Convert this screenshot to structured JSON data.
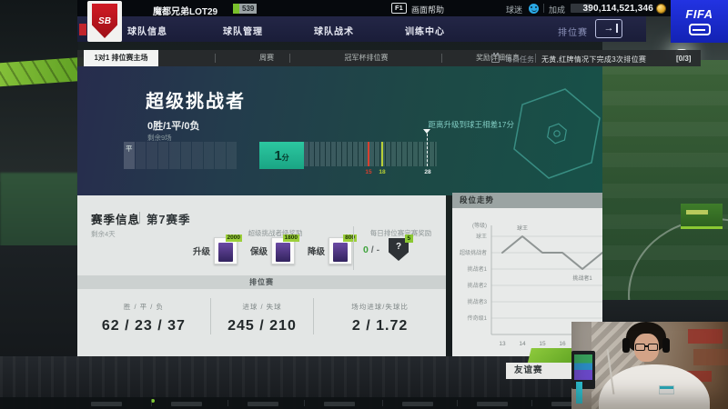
{
  "top_bar": {
    "crest_initials": "SB",
    "team_name": "魔都兄弟LOT29",
    "team_level": "539",
    "help_key": "F1",
    "help_label": "画面帮助",
    "fans_label": "球迷",
    "bonus_label": "加成",
    "currency_amount": "390,114,521,346",
    "mode_label": "排位赛"
  },
  "nav_items": [
    "球队信息",
    "球队管理",
    "球队战术",
    "训练中心"
  ],
  "fifa_logo_text": "FIFA",
  "tab_bar": {
    "tabs": [
      "1对1 排位赛主场",
      "周赛",
      "冠军杯排位赛",
      "奖励详细信息"
    ],
    "active_tab": "1对1 排位赛主场",
    "daily_task_label": "每日任务",
    "daily_task_text": "无黄,红牌情况下完成3次排位赛",
    "daily_task_progress": "[0/3]"
  },
  "rank_panel": {
    "rank_title": "超级挑战者",
    "record": "0胜/1平/0负",
    "matches_remaining": "剩余9场",
    "placement_total_segments": 10,
    "placement_results": [
      "平"
    ],
    "current_points": "1",
    "current_points_unit": "分",
    "promotion_hint": "距离升级到球王相差17分",
    "milestones": [
      {
        "value": 15,
        "color": "#d8402f",
        "flag": false
      },
      {
        "value": 18,
        "color": "#b7cf35",
        "flag": false
      },
      {
        "value": 28,
        "color": "#eef2f2",
        "flag": true
      }
    ]
  },
  "season_panel": {
    "title": "赛季信息",
    "season": "第7赛季",
    "days_remaining": "剩余4天",
    "rank_rewards_title": "超级挑战者级奖励",
    "rank_rewards": [
      {
        "label": "升级",
        "value": "2000"
      },
      {
        "label": "保级",
        "value": "1800"
      },
      {
        "label": "降级",
        "value": "800"
      }
    ],
    "daily_reward_title": "每日排位赛完赛奖励",
    "daily_reward_done": "0",
    "daily_reward_rest": " / -",
    "daily_reward_icon_text": "?",
    "daily_reward_badge": "5",
    "section_header": "排位赛",
    "stats": [
      {
        "label": "胜 / 平 / 负",
        "value": "62 / 23 / 37"
      },
      {
        "label": "进球 / 失球",
        "value": "245 / 210"
      },
      {
        "label": "场均进球/失球比",
        "value": "2 / 1.72"
      }
    ]
  },
  "chart_data": {
    "type": "line",
    "title": "段位走势",
    "y_axis_label": "(等级)",
    "y_categories_top_to_bottom": [
      "球王",
      "超级挑战者",
      "挑战者1",
      "挑战者2",
      "挑战者3",
      "传奇级1"
    ],
    "x": [
      13,
      14,
      15,
      16,
      17,
      18
    ],
    "points": [
      "超级挑战者",
      "球王",
      "超级挑战者",
      "超级挑战者",
      "挑战者1",
      "超级挑战者"
    ],
    "annotations": [
      {
        "x": 14,
        "label": "球王",
        "position": "above"
      },
      {
        "x": 17,
        "label": "挑战者1",
        "position": "below"
      }
    ],
    "line_color": "#8f9594",
    "grid": true,
    "legend": "none"
  },
  "friendly_button_label": "友谊赛",
  "colors": {
    "accent_teal": "#2cc7a0",
    "accent_green": "#8bc832",
    "fifa_blue": "#1d2cd0",
    "milestone_red": "#d8402f",
    "milestone_green": "#b7cf35"
  }
}
